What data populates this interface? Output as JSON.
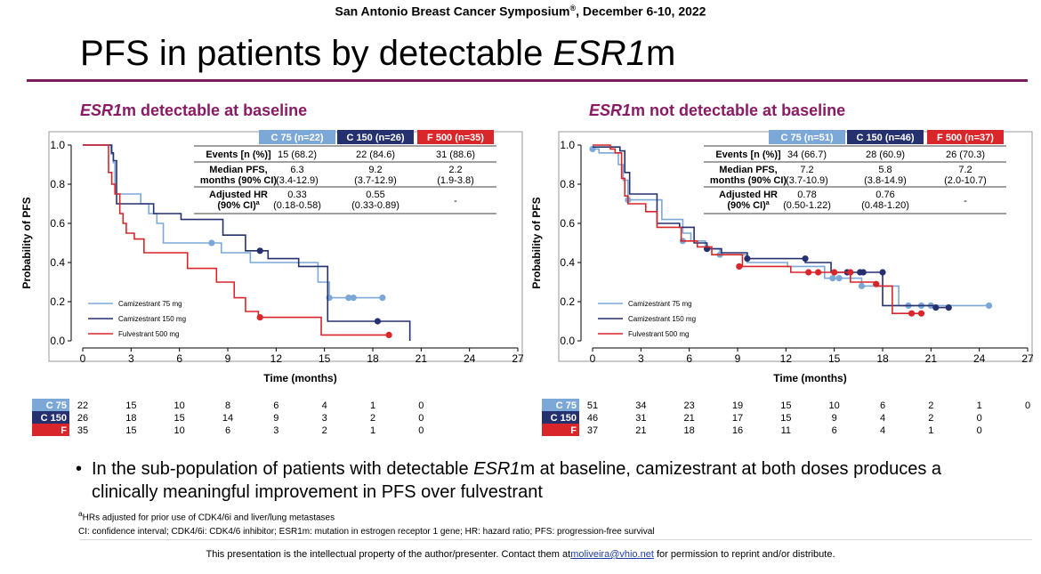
{
  "header": {
    "conference": "San Antonio Breast Cancer Symposium",
    "reg": "®",
    "dates": ", December 6-10, 2022",
    "title_a": "PFS in patients by detectable ",
    "title_b": "ESR1",
    "title_c": "m"
  },
  "colors": {
    "c75": "#7ba8d6",
    "c150": "#25306e",
    "f500": "#d9262a",
    "accent": "#8a1a63"
  },
  "chart_data": [
    {
      "type": "line",
      "title_em": "ESR1",
      "title_rest": "m detectable at baseline",
      "xlabel": "Time (months)",
      "ylabel": "Probability of PFS",
      "xlim": [
        0,
        27
      ],
      "ylim": [
        0,
        1
      ],
      "xticks": [
        "0",
        "3",
        "6",
        "9",
        "12",
        "15",
        "18",
        "21",
        "24",
        "27"
      ],
      "yticks": [
        "0.0",
        "0.2",
        "0.4",
        "0.6",
        "0.8",
        "1.0"
      ],
      "table": {
        "headers": [
          "C 75 (n=22)",
          "C 150 (n=26)",
          "F 500 (n=35)"
        ],
        "rows": [
          {
            "label": [
              "Events [n (%)]"
            ],
            "cells": [
              [
                "15 (68.2)"
              ],
              [
                "22 (84.6)"
              ],
              [
                "31 (88.6)"
              ]
            ]
          },
          {
            "label": [
              "Median PFS,",
              "months (90% CI)"
            ],
            "cells": [
              [
                "6.3",
                "(3.4-12.9)"
              ],
              [
                "9.2",
                "(3.7-12.9)"
              ],
              [
                "2.2",
                "(1.9-3.8)"
              ]
            ]
          },
          {
            "label": [
              "Adjusted HR",
              "(90% CI)"
            ],
            "sup": "a",
            "cells": [
              [
                "0.33",
                "(0.18-0.58)"
              ],
              [
                "0.55",
                "(0.33-0.89)"
              ],
              [
                "-"
              ]
            ]
          }
        ]
      },
      "series": [
        {
          "name": "Camizestrant 75 mg",
          "color": "#7ba8d6",
          "x": [
            0,
            1.6,
            1.75,
            1.9,
            2,
            3.3,
            3.6,
            4.1,
            4.6,
            5,
            6.6,
            8,
            8.6,
            9.5,
            10.4,
            11,
            11.5,
            14.6,
            15,
            15.3,
            16.5,
            16.8,
            18.6
          ],
          "y": [
            1,
            1,
            0.955,
            0.91,
            0.75,
            0.75,
            0.7,
            0.65,
            0.6,
            0.5,
            0.5,
            0.5,
            0.45,
            0.45,
            0.4,
            0.4,
            0.4,
            0.3,
            0.3,
            0.22,
            0.22,
            0.22,
            0.22
          ],
          "censor": [
            [
              8,
              0.5
            ],
            [
              15.3,
              0.22
            ],
            [
              16.5,
              0.22
            ],
            [
              16.8,
              0.22
            ],
            [
              18.6,
              0.22
            ]
          ]
        },
        {
          "name": "Camizestrant 150 mg",
          "color": "#25306e",
          "x": [
            0,
            1.6,
            1.8,
            1.9,
            2.1,
            3.7,
            4.4,
            5.4,
            6.1,
            7.4,
            8.7,
            9.3,
            10.1,
            11,
            11.5,
            12.7,
            13.4,
            14.6,
            15.2,
            18.3,
            18.9,
            20.3,
            20.3
          ],
          "y": [
            1,
            1,
            0.96,
            0.92,
            0.7,
            0.7,
            0.65,
            0.65,
            0.62,
            0.62,
            0.54,
            0.54,
            0.46,
            0.46,
            0.42,
            0.42,
            0.38,
            0.38,
            0.1,
            0.1,
            0.1,
            0.1,
            0
          ],
          "censor": [
            [
              11,
              0.46
            ],
            [
              18.3,
              0.1
            ]
          ]
        },
        {
          "name": "Fulvestrant 500 mg",
          "color": "#d9262a",
          "x": [
            0,
            1.4,
            1.6,
            1.8,
            2,
            2.3,
            2.5,
            2.7,
            3.2,
            3.8,
            5.2,
            6.5,
            8.3,
            9.4,
            10.1,
            10.9,
            14.8,
            19
          ],
          "y": [
            1,
            1,
            0.86,
            0.8,
            0.75,
            0.65,
            0.6,
            0.55,
            0.52,
            0.45,
            0.45,
            0.37,
            0.3,
            0.22,
            0.15,
            0.12,
            0.03,
            0.03
          ],
          "censor": [
            [
              11,
              0.12
            ],
            [
              19,
              0.03
            ]
          ]
        }
      ],
      "risk": {
        "labels": [
          "C 75",
          "C 150",
          "F"
        ],
        "rows": [
          [
            "22",
            "15",
            "10",
            "8",
            "6",
            "4",
            "1",
            "0"
          ],
          [
            "26",
            "18",
            "15",
            "14",
            "9",
            "3",
            "2",
            "0"
          ],
          [
            "35",
            "15",
            "10",
            "6",
            "3",
            "2",
            "1",
            "0"
          ]
        ]
      }
    },
    {
      "type": "line",
      "title_em": "ESR1",
      "title_rest": "m not detectable at baseline",
      "xlabel": "Time (months)",
      "ylabel": "Probability of PFS",
      "xlim": [
        0,
        27
      ],
      "ylim": [
        0,
        1
      ],
      "xticks": [
        "0",
        "3",
        "6",
        "9",
        "12",
        "15",
        "18",
        "21",
        "24",
        "27"
      ],
      "yticks": [
        "0.0",
        "0.2",
        "0.4",
        "0.6",
        "0.8",
        "1.0"
      ],
      "table": {
        "headers": [
          "C 75 (n=51)",
          "C 150 (n=46)",
          "F 500 (n=37)"
        ],
        "rows": [
          {
            "label": [
              "Events [n (%)]"
            ],
            "cells": [
              [
                "34 (66.7)"
              ],
              [
                "28 (60.9)"
              ],
              [
                "26 (70.3)"
              ]
            ]
          },
          {
            "label": [
              "Median PFS,",
              "months (90% CI)"
            ],
            "cells": [
              [
                "7.2",
                "(3.7-10.9)"
              ],
              [
                "5.8",
                "(3.8-14.9)"
              ],
              [
                "7.2",
                "(2.0-10.7)"
              ]
            ]
          },
          {
            "label": [
              "Adjusted HR",
              "(90% CI)"
            ],
            "sup": "a",
            "cells": [
              [
                "0.78",
                "(0.50-1.22)"
              ],
              [
                "0.76",
                "(0.48-1.20)"
              ],
              [
                "-"
              ]
            ]
          }
        ]
      },
      "series": [
        {
          "name": "Camizestrant 75 mg",
          "color": "#7ba8d6",
          "x": [
            0,
            0.4,
            1.2,
            1.6,
            1.9,
            2.2,
            3.5,
            4.3,
            5.6,
            6.1,
            7,
            7.9,
            9.6,
            12.1,
            14.4,
            15.2,
            16.7,
            17.9,
            19,
            24.6
          ],
          "y": [
            0.98,
            0.96,
            0.96,
            0.9,
            0.82,
            0.72,
            0.72,
            0.62,
            0.55,
            0.51,
            0.47,
            0.44,
            0.4,
            0.38,
            0.32,
            0.32,
            0.28,
            0.28,
            0.18,
            0.18
          ],
          "censor": [
            [
              0,
              0.98
            ],
            [
              2.2,
              0.72
            ],
            [
              5.6,
              0.51
            ],
            [
              7.9,
              0.44
            ],
            [
              14.9,
              0.32
            ],
            [
              15.3,
              0.32
            ],
            [
              16.7,
              0.28
            ],
            [
              19.6,
              0.18
            ],
            [
              20.4,
              0.18
            ],
            [
              21,
              0.18
            ],
            [
              24.6,
              0.18
            ]
          ]
        },
        {
          "name": "Camizestrant 150 mg",
          "color": "#25306e",
          "x": [
            0,
            1.7,
            2,
            2.3,
            3.5,
            4,
            4.5,
            5.4,
            6.3,
            7.1,
            8,
            9.6,
            11.7,
            13.2,
            14,
            14.8,
            16,
            18,
            18.6,
            21.3,
            22.1
          ],
          "y": [
            0.99,
            0.97,
            0.86,
            0.75,
            0.75,
            0.6,
            0.6,
            0.58,
            0.5,
            0.47,
            0.45,
            0.42,
            0.42,
            0.4,
            0.4,
            0.35,
            0.35,
            0.18,
            0.18,
            0.17,
            0.17
          ],
          "censor": [
            [
              7.1,
              0.47
            ],
            [
              9.6,
              0.42
            ],
            [
              13.2,
              0.42
            ],
            [
              15.8,
              0.35
            ],
            [
              16.6,
              0.35
            ],
            [
              16.8,
              0.35
            ],
            [
              18,
              0.35
            ],
            [
              21.3,
              0.17
            ],
            [
              22.1,
              0.17
            ]
          ]
        },
        {
          "name": "Fulvestrant 500 mg",
          "color": "#d9262a",
          "x": [
            0,
            0.5,
            1.1,
            1.4,
            1.8,
            2,
            2.2,
            3.3,
            4,
            5.5,
            6.5,
            7.4,
            9.3,
            10.9,
            12.3,
            13.4,
            14.6,
            16,
            17.6,
            18.6,
            20.4
          ],
          "y": [
            1,
            1,
            0.98,
            0.96,
            0.83,
            0.74,
            0.7,
            0.66,
            0.58,
            0.51,
            0.48,
            0.44,
            0.38,
            0.38,
            0.35,
            0.35,
            0.35,
            0.3,
            0.28,
            0.14,
            0.14
          ],
          "censor": [
            [
              9.1,
              0.38
            ],
            [
              13.4,
              0.35
            ],
            [
              14,
              0.35
            ],
            [
              15,
              0.35
            ],
            [
              16,
              0.35
            ],
            [
              17.6,
              0.29
            ],
            [
              19.8,
              0.14
            ],
            [
              20.4,
              0.14
            ]
          ]
        }
      ],
      "risk": {
        "labels": [
          "C 75",
          "C 150",
          "F"
        ],
        "rows": [
          [
            "51",
            "34",
            "23",
            "19",
            "15",
            "10",
            "6",
            "2",
            "1",
            "0"
          ],
          [
            "46",
            "31",
            "21",
            "17",
            "15",
            "9",
            "4",
            "2",
            "0"
          ],
          [
            "37",
            "21",
            "18",
            "16",
            "11",
            "6",
            "4",
            "1",
            "0"
          ]
        ]
      }
    }
  ],
  "bullet": {
    "symbol": "•",
    "text_a": "In the sub-population of patients with detectable ",
    "text_em": "ESR1",
    "text_b": "m at baseline, camizestrant at both doses produces a clinically meaningful improvement in PFS over fulvestrant"
  },
  "footnotes": {
    "fn1_sup": "a",
    "fn1": "HRs adjusted for prior use of CDK4/6i and liver/lung metastases",
    "fn2": "CI: confidence interval; CDK4/6i: CDK4/6 inhibitor; ESR1m: mutation in estrogen receptor 1 gene; HR: hazard ratio; PFS: progression-free survival"
  },
  "footer": {
    "text": "This presentation is the intellectual property of the author/presenter. Contact them at",
    "email": "moliveira@vhio.net",
    "text2": " for permission to reprint and/or distribute."
  }
}
